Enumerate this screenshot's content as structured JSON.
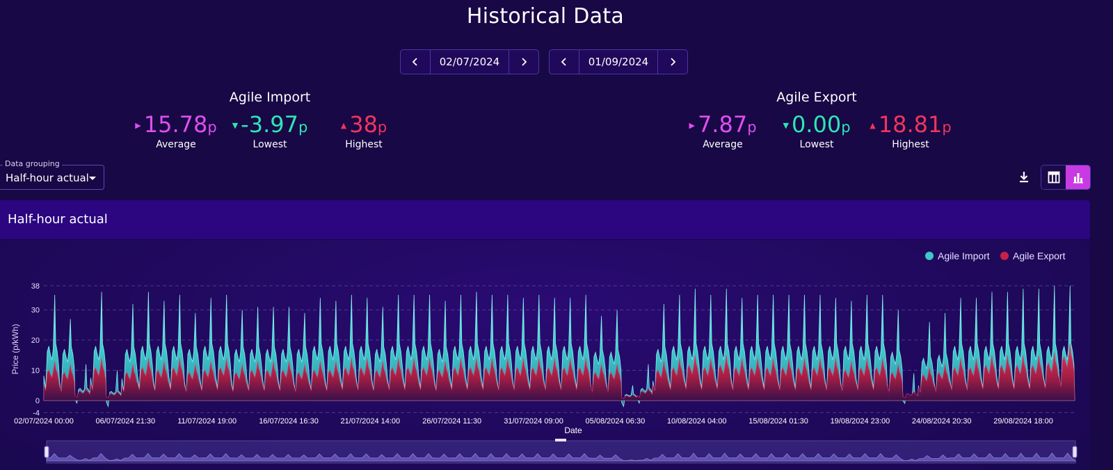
{
  "page": {
    "title": "Historical Data"
  },
  "date_range": {
    "start": "02/07/2024",
    "end": "01/09/2024"
  },
  "import_stats": {
    "title": "Agile Import",
    "average": {
      "value": "15.78",
      "unit": "p",
      "label": "Average"
    },
    "lowest": {
      "value": "-3.97",
      "unit": "p",
      "label": "Lowest"
    },
    "highest": {
      "value": "38",
      "unit": "p",
      "label": "Highest"
    }
  },
  "export_stats": {
    "title": "Agile Export",
    "average": {
      "value": "7.87",
      "unit": "p",
      "label": "Average"
    },
    "lowest": {
      "value": "0.00",
      "unit": "p",
      "label": "Lowest"
    },
    "highest": {
      "value": "18.81",
      "unit": "p",
      "label": "Highest"
    }
  },
  "grouping": {
    "label": "Data grouping",
    "value": "Half-hour actual"
  },
  "panel": {
    "title": "Half-hour actual"
  },
  "colors": {
    "average": "#e04ef0",
    "lowest": "#2ee6b4",
    "highest": "#f0355d",
    "import": "#3ec7c9",
    "export": "#c8204a"
  },
  "chart_data": {
    "type": "area",
    "xlabel": "Date",
    "ylabel": "Price (p/kWh)",
    "yticks": [
      -4,
      0,
      10,
      20,
      30,
      38
    ],
    "ylim": [
      -4,
      38
    ],
    "x_tick_labels": [
      "02/07/2024 00:00",
      "06/07/2024 21:30",
      "11/07/2024 19:00",
      "16/07/2024 16:30",
      "21/07/2024 14:00",
      "26/07/2024 11:30",
      "31/07/2024 09:00",
      "05/08/2024 06:30",
      "10/08/2024 04:00",
      "15/08/2024 01:30",
      "19/08/2024 23:00",
      "24/08/2024 20:30",
      "29/08/2024 18:00"
    ],
    "legend_position": "top-right",
    "grid": true,
    "series": [
      {
        "name": "Agile Import",
        "daily_peak": [
          35,
          27,
          12,
          36,
          10,
          32,
          36,
          33,
          35,
          29,
          34,
          35,
          30,
          31,
          31,
          31,
          29,
          34,
          33,
          35,
          34,
          31,
          35,
          35,
          35,
          33,
          35,
          36,
          35,
          35,
          34,
          35,
          34,
          34,
          35,
          28,
          30,
          5,
          12,
          32,
          35,
          37,
          35,
          37,
          34,
          35,
          35,
          35,
          35,
          35,
          34,
          33,
          35,
          35,
          30,
          9,
          26,
          29,
          34,
          34,
          36,
          36,
          37,
          37,
          38,
          38
        ],
        "daily_base": [
          18,
          17,
          4,
          18,
          3,
          17,
          18,
          18,
          18,
          17,
          18,
          18,
          17,
          17,
          17,
          17,
          17,
          18,
          18,
          18,
          18,
          17,
          18,
          18,
          18,
          17,
          18,
          18,
          18,
          18,
          18,
          18,
          18,
          18,
          18,
          16,
          16,
          2,
          4,
          17,
          18,
          18,
          18,
          18,
          18,
          18,
          18,
          18,
          18,
          18,
          18,
          18,
          18,
          18,
          16,
          2,
          14,
          15,
          18,
          18,
          18,
          18,
          18,
          18,
          18,
          18
        ],
        "daily_low": [
          4,
          2,
          -1,
          3,
          -2,
          3,
          4,
          3,
          4,
          2,
          3,
          4,
          3,
          3,
          3,
          3,
          2,
          3,
          3,
          4,
          3,
          3,
          3,
          4,
          4,
          3,
          4,
          4,
          4,
          3,
          3,
          4,
          3,
          3,
          4,
          1,
          2,
          -2,
          -1,
          2,
          4,
          4,
          4,
          4,
          3,
          4,
          4,
          3,
          4,
          4,
          3,
          2,
          3,
          4,
          1,
          -1,
          1,
          2,
          3,
          3,
          4,
          4,
          4,
          4,
          4,
          4
        ]
      },
      {
        "name": "Agile Export",
        "daily_peak": [
          13,
          12,
          4,
          14,
          3,
          12,
          14,
          13,
          14,
          12,
          13,
          14,
          12,
          13,
          13,
          13,
          12,
          13,
          13,
          14,
          14,
          13,
          14,
          14,
          14,
          13,
          14,
          14,
          14,
          14,
          14,
          14,
          14,
          14,
          14,
          12,
          12,
          2,
          4,
          13,
          14,
          15,
          14,
          15,
          14,
          14,
          14,
          14,
          14,
          14,
          14,
          13,
          14,
          14,
          12,
          3,
          11,
          12,
          14,
          14,
          15,
          15,
          15,
          15,
          16,
          18.81
        ]
      }
    ]
  }
}
